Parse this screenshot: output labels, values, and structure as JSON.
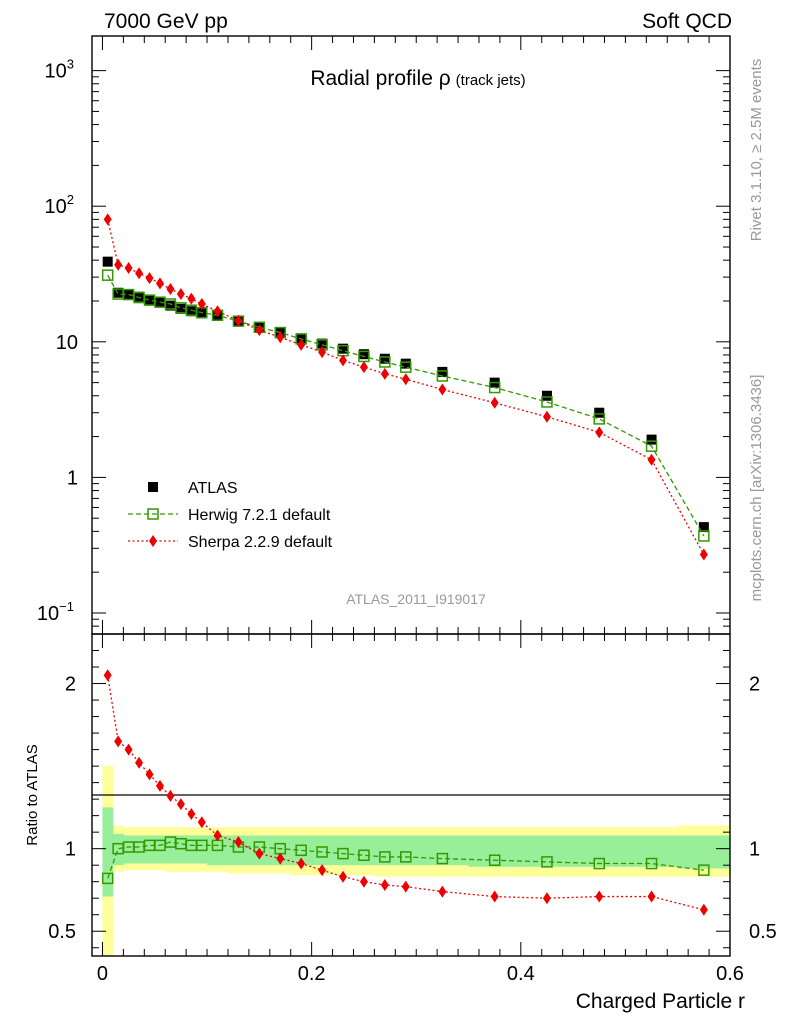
{
  "header": {
    "left": "7000 GeV pp",
    "right": "Soft QCD"
  },
  "side_labels": {
    "rivet": "Rivet 3.1.10, ≥ 2.5M events",
    "mcplots": "mcplots.cern.ch [arXiv:1306.3436]"
  },
  "analysis_id": "ATLAS_2011_I919017",
  "colors": {
    "atlas": "#000000",
    "herwig": "#339900",
    "sherpa": "#ee0000",
    "band_inner": "#99ee99",
    "band_outer": "#ffff99"
  },
  "chart_data": [
    {
      "type": "scatter",
      "panel": "main",
      "title": "Radial profile ρ",
      "title_suffix": "(track jets)",
      "ylog": true,
      "xlim": [
        -0.01,
        0.6
      ],
      "ylim": [
        0.07,
        1800
      ],
      "yticks": [
        {
          "value": 1000,
          "base": "10",
          "exp": "3"
        },
        {
          "value": 100,
          "base": "10",
          "exp": "2"
        },
        {
          "value": 10,
          "base": "10",
          "exp": ""
        },
        {
          "value": 1,
          "base": "1",
          "exp": ""
        },
        {
          "value": 0.1,
          "base": "10",
          "exp": "−1"
        }
      ],
      "legend_position": "lower-left",
      "x": [
        0.005,
        0.015,
        0.025,
        0.035,
        0.045,
        0.055,
        0.065,
        0.075,
        0.085,
        0.095,
        0.11,
        0.13,
        0.15,
        0.17,
        0.19,
        0.21,
        0.23,
        0.25,
        0.27,
        0.29,
        0.325,
        0.375,
        0.425,
        0.475,
        0.525,
        0.575
      ],
      "series": [
        {
          "name": "ATLAS",
          "key": "atlas",
          "marker": "square",
          "values": [
            39,
            23,
            22.5,
            21.5,
            20.5,
            19.5,
            18.5,
            17.5,
            16.8,
            16.2,
            15.5,
            14.2,
            12.8,
            11.6,
            10.6,
            9.7,
            8.9,
            8.1,
            7.5,
            6.9,
            6.0,
            5.0,
            4.0,
            3.0,
            1.9,
            0.43
          ]
        },
        {
          "name": "Herwig 7.2.1 default",
          "key": "herwig",
          "marker": "open-square",
          "values": [
            31,
            22.5,
            22.3,
            21.2,
            20.3,
            19.6,
            19,
            17.8,
            17.1,
            16.4,
            15.7,
            14.2,
            12.8,
            11.7,
            10.5,
            9.5,
            8.6,
            7.8,
            7.1,
            6.5,
            5.6,
            4.6,
            3.6,
            2.7,
            1.7,
            0.37
          ]
        },
        {
          "name": "Sherpa 2.2.9 default",
          "key": "sherpa",
          "marker": "diamond",
          "values": [
            80,
            37,
            35,
            32,
            29.5,
            27,
            24.5,
            22.5,
            20.8,
            19,
            16.8,
            14.3,
            12.2,
            10.8,
            9.5,
            8.4,
            7.3,
            6.5,
            5.8,
            5.3,
            4.45,
            3.55,
            2.8,
            2.15,
            1.35,
            0.27
          ]
        }
      ]
    },
    {
      "type": "scatter",
      "panel": "ratio",
      "ylabel": "Ratio to ATLAS",
      "xlabel": "Charged Particle r",
      "xlim": [
        -0.01,
        0.6
      ],
      "ylim": [
        0.35,
        2.3
      ],
      "xticks": [
        {
          "value": 0,
          "label": "0"
        },
        {
          "value": 0.2,
          "label": "0.2"
        },
        {
          "value": 0.4,
          "label": "0.4"
        },
        {
          "value": 0.6,
          "label": "0.6"
        }
      ],
      "yticks": [
        {
          "value": 2,
          "label": "2"
        },
        {
          "value": 1,
          "label": "1"
        },
        {
          "value": 0.5,
          "label": "0.5"
        }
      ],
      "x_edges": [
        0,
        0.01,
        0.02,
        0.03,
        0.04,
        0.05,
        0.06,
        0.07,
        0.08,
        0.09,
        0.1,
        0.12,
        0.14,
        0.16,
        0.18,
        0.2,
        0.22,
        0.24,
        0.26,
        0.28,
        0.3,
        0.35,
        0.4,
        0.45,
        0.5,
        0.55,
        0.6
      ],
      "band_outer": [
        [
          0.35,
          1.5
        ],
        [
          0.86,
          1.14
        ],
        [
          0.87,
          1.13
        ],
        [
          0.87,
          1.13
        ],
        [
          0.87,
          1.13
        ],
        [
          0.87,
          1.13
        ],
        [
          0.86,
          1.13
        ],
        [
          0.86,
          1.13
        ],
        [
          0.86,
          1.13
        ],
        [
          0.86,
          1.13
        ],
        [
          0.86,
          1.13
        ],
        [
          0.85,
          1.13
        ],
        [
          0.85,
          1.13
        ],
        [
          0.85,
          1.13
        ],
        [
          0.84,
          1.13
        ],
        [
          0.84,
          1.13
        ],
        [
          0.84,
          1.13
        ],
        [
          0.84,
          1.13
        ],
        [
          0.83,
          1.13
        ],
        [
          0.83,
          1.13
        ],
        [
          0.83,
          1.13
        ],
        [
          0.83,
          1.13
        ],
        [
          0.83,
          1.13
        ],
        [
          0.83,
          1.13
        ],
        [
          0.83,
          1.13
        ],
        [
          0.83,
          1.14
        ]
      ],
      "band_inner": [
        [
          0.71,
          1.25
        ],
        [
          0.9,
          1.09
        ],
        [
          0.91,
          1.08
        ],
        [
          0.91,
          1.08
        ],
        [
          0.91,
          1.08
        ],
        [
          0.91,
          1.08
        ],
        [
          0.91,
          1.08
        ],
        [
          0.91,
          1.08
        ],
        [
          0.91,
          1.08
        ],
        [
          0.91,
          1.08
        ],
        [
          0.9,
          1.08
        ],
        [
          0.9,
          1.08
        ],
        [
          0.9,
          1.08
        ],
        [
          0.9,
          1.08
        ],
        [
          0.9,
          1.08
        ],
        [
          0.9,
          1.08
        ],
        [
          0.9,
          1.08
        ],
        [
          0.9,
          1.08
        ],
        [
          0.9,
          1.08
        ],
        [
          0.9,
          1.08
        ],
        [
          0.9,
          1.08
        ],
        [
          0.89,
          1.08
        ],
        [
          0.89,
          1.08
        ],
        [
          0.89,
          1.08
        ],
        [
          0.89,
          1.08
        ],
        [
          0.88,
          1.08
        ]
      ],
      "x": [
        0.005,
        0.015,
        0.025,
        0.035,
        0.045,
        0.055,
        0.065,
        0.075,
        0.085,
        0.095,
        0.11,
        0.13,
        0.15,
        0.17,
        0.19,
        0.21,
        0.23,
        0.25,
        0.27,
        0.29,
        0.325,
        0.375,
        0.425,
        0.475,
        0.525,
        0.575
      ],
      "series": [
        {
          "name": "Herwig 7.2.1 default",
          "key": "herwig",
          "marker": "open-square",
          "values": [
            0.82,
            1.0,
            1.01,
            1.01,
            1.02,
            1.02,
            1.04,
            1.03,
            1.02,
            1.02,
            1.02,
            1.01,
            1.01,
            1.0,
            0.99,
            0.98,
            0.97,
            0.96,
            0.95,
            0.95,
            0.94,
            0.93,
            0.92,
            0.91,
            0.91,
            0.87
          ]
        },
        {
          "name": "Sherpa 2.2.9 default",
          "key": "sherpa",
          "marker": "diamond",
          "values": [
            2.05,
            1.65,
            1.6,
            1.52,
            1.45,
            1.38,
            1.32,
            1.27,
            1.21,
            1.16,
            1.08,
            1.04,
            0.97,
            0.94,
            0.91,
            0.87,
            0.83,
            0.8,
            0.78,
            0.77,
            0.74,
            0.71,
            0.7,
            0.71,
            0.71,
            0.63
          ]
        }
      ]
    }
  ]
}
